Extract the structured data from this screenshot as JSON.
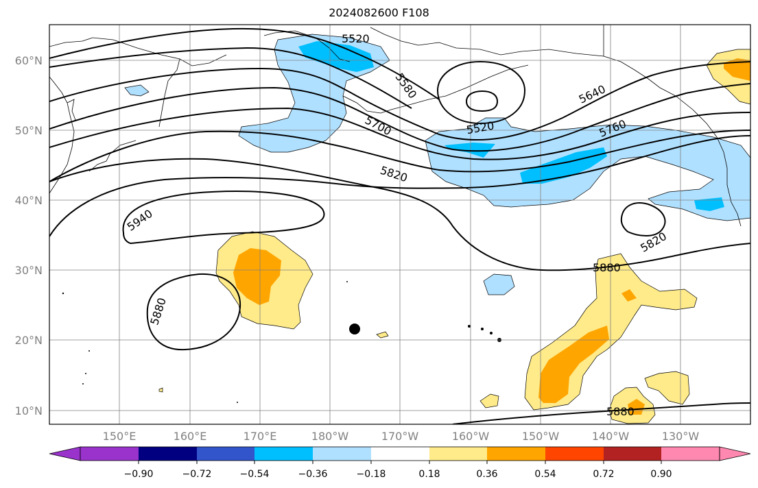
{
  "title": "2024082600 F108",
  "lat_labels": [
    "60°N",
    "50°N",
    "40°N",
    "30°N",
    "20°N",
    "10°N"
  ],
  "lon_labels": [
    "150°E",
    "160°E",
    "170°E",
    "180°W",
    "170°W",
    "160°W",
    "150°W",
    "140°W",
    "130°W"
  ],
  "contour_labels": {
    "c5520_top": "5520",
    "c5580": "5580",
    "c5520_low": "5520",
    "c5640": "5640",
    "c5700": "5700",
    "c5760": "5760",
    "c5820_main": "5820",
    "c5940": "5940",
    "c5820_east": "5820",
    "c5880_east": "5880",
    "c5880_west": "5880",
    "c5880_south": "5880"
  },
  "colorbar": {
    "ticks": [
      "−0.90",
      "−0.72",
      "−0.54",
      "−0.36",
      "−0.18",
      "0.18",
      "0.36",
      "0.54",
      "0.72",
      "0.90"
    ],
    "colors": [
      "#9933cc",
      "#000080",
      "#3355cc",
      "#00bfff",
      "#b0e0ff",
      "#ffffff",
      "#ffeb8a",
      "#ffa500",
      "#ff4500",
      "#b22222",
      "#ff88b0"
    ]
  },
  "shading_colors": {
    "light_blue": "#b0e0ff",
    "blue": "#00bfff",
    "light_yellow": "#ffeb8a",
    "orange": "#ffa500"
  }
}
